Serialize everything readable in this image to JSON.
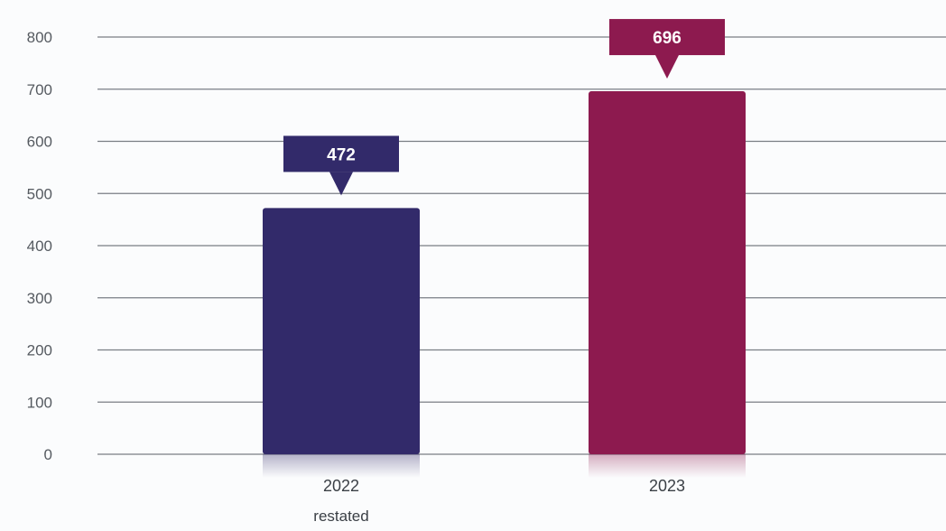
{
  "chart_data": {
    "type": "bar",
    "title": "",
    "xlabel": "",
    "ylabel": "",
    "ylim": [
      0,
      800
    ],
    "yticks": [
      0,
      100,
      200,
      300,
      400,
      500,
      600,
      700,
      800
    ],
    "grid": true,
    "categories": [
      "2022",
      "2023"
    ],
    "category_sublabels": [
      "restated",
      ""
    ],
    "series": [
      {
        "values": [
          472,
          696
        ],
        "colors": [
          "#322a6a",
          "#8d1a4f"
        ]
      }
    ],
    "data_labels": [
      "472",
      "696"
    ]
  }
}
